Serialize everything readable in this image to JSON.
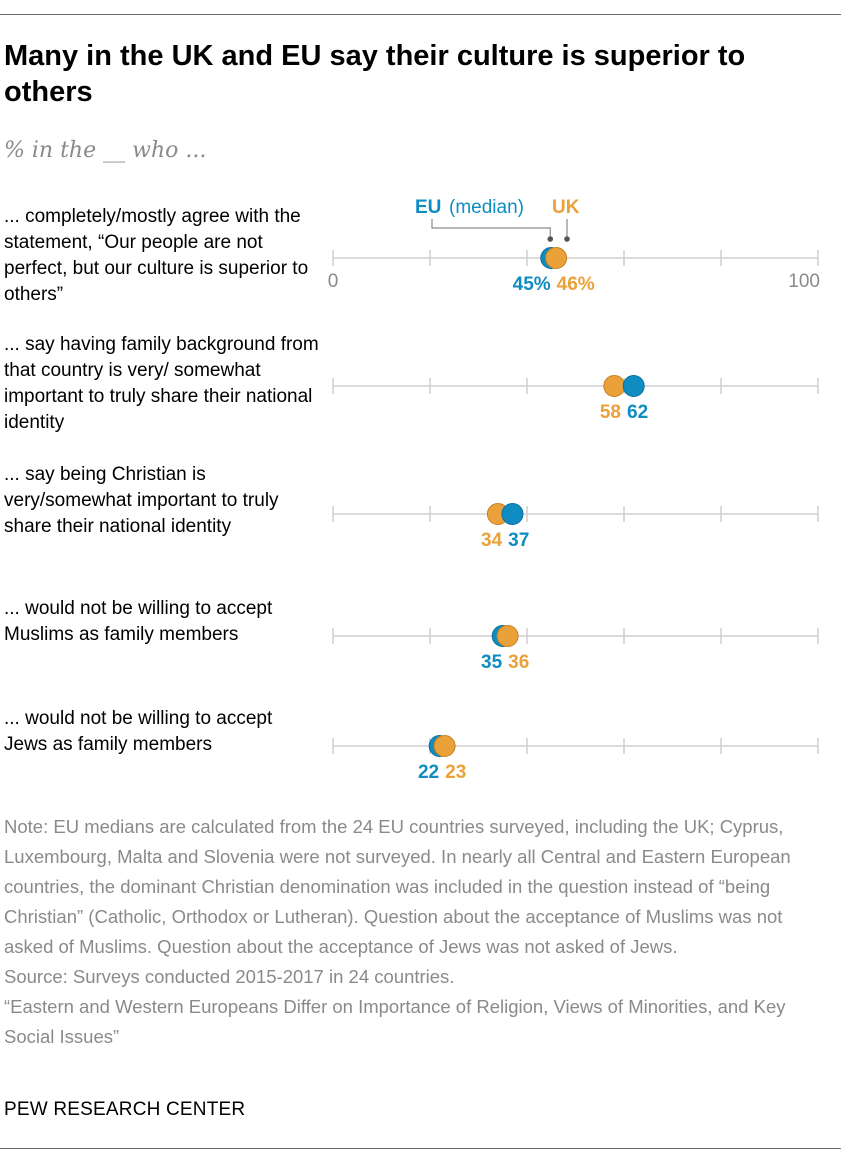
{
  "title": "Many in the UK and EU say their culture is superior to others",
  "subtitle": "% in the __ who ...",
  "chart_data": {
    "type": "dot",
    "title": "Many in the UK and EU say their culture is superior to others",
    "subtitle": "% in the __ who ...",
    "xlim": [
      0,
      100
    ],
    "x_ticks": [
      0,
      20,
      40,
      60,
      80,
      100
    ],
    "x_tick_labels": [
      "0",
      "100"
    ],
    "legend": {
      "eu_label": "EU",
      "eu_suffix": "(median)",
      "uk_label": "UK",
      "placement": "top, above first row"
    },
    "colors": {
      "eu": "#0f8cc2",
      "uk": "#eba13a",
      "axis": "#cfcfcf",
      "note": "#8a8a8a"
    },
    "categories": [
      "... completely/mostly agree with the statement, “Our people are not perfect, but our culture is superior to others”",
      "... say having family background from that country is very/ somewhat important to truly share their national identity",
      "... say being Christian is very/somewhat important to truly share their national identity",
      "... would not be willing to accept Muslims as family members",
      "... would not be willing to accept Jews as family members"
    ],
    "series": [
      {
        "name": "EU (median)",
        "values": [
          45,
          62,
          37,
          35,
          22
        ]
      },
      {
        "name": "UK",
        "values": [
          46,
          58,
          34,
          36,
          23
        ]
      }
    ],
    "value_labels": {
      "eu": [
        "45%",
        "62",
        "37",
        "35",
        "22"
      ],
      "uk": [
        "46%",
        "58",
        "34",
        "36",
        "23"
      ]
    }
  },
  "notes": {
    "note": "Note: EU medians are calculated from the 24 EU countries surveyed, including the UK; Cyprus, Luxembourg, Malta and Slovenia were not surveyed. In nearly all Central and Eastern European countries, the dominant Christian denomination was included in the question instead of “being Christian” (Catholic, Orthodox or Lutheran). Question about the acceptance of Muslims was not asked of Muslims. Question about the acceptance of Jews was not asked of Jews.",
    "source": "Source: Surveys conducted 2015-2017 in 24 countries.",
    "report": "“Eastern and Western Europeans Differ on Importance of Religion, Views of Minorities, and Key Social Issues”"
  },
  "org": "PEW RESEARCH CENTER"
}
